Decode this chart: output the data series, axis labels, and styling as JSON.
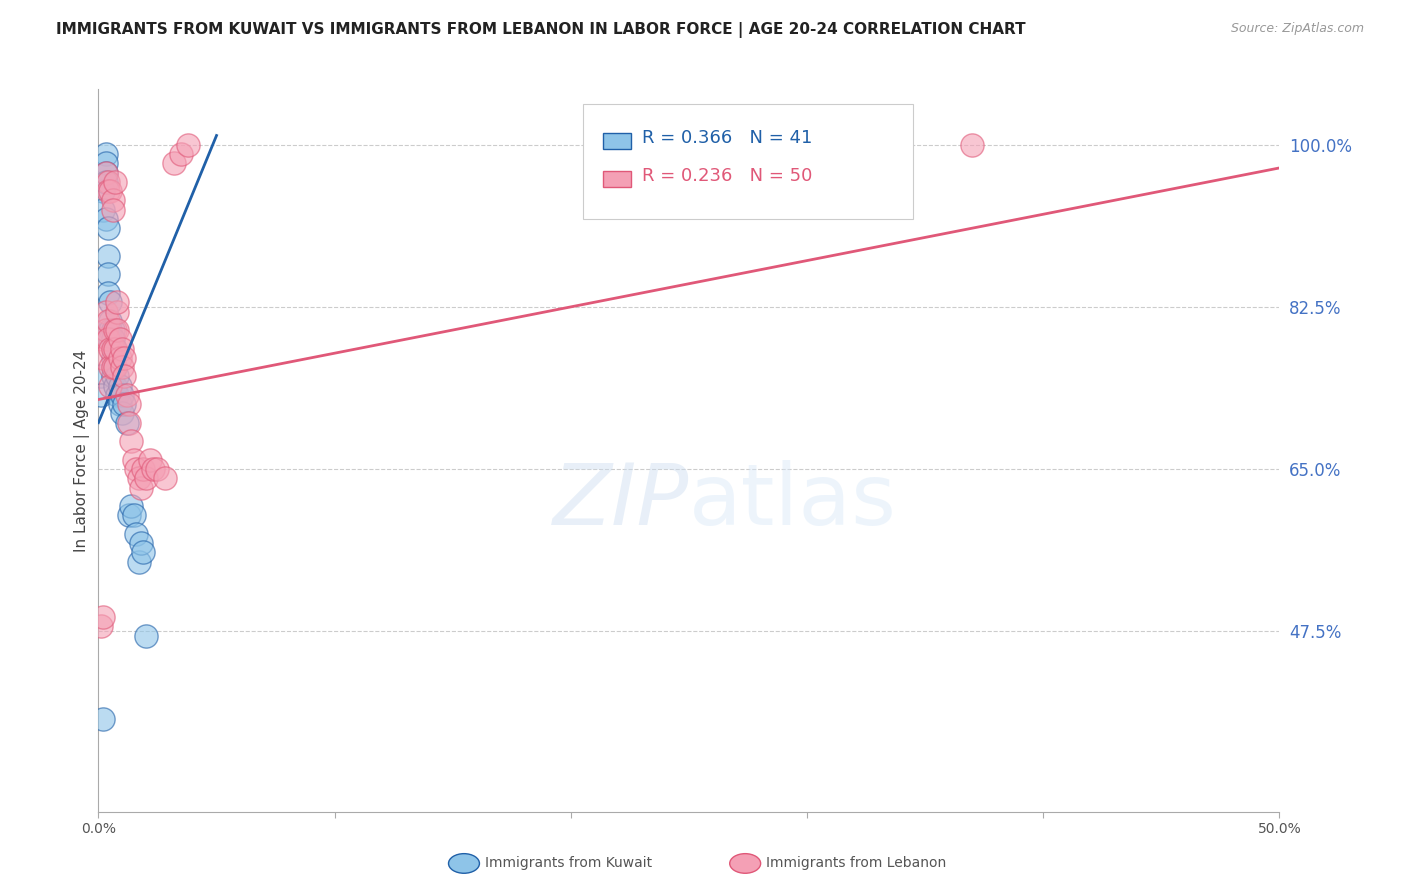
{
  "title": "IMMIGRANTS FROM KUWAIT VS IMMIGRANTS FROM LEBANON IN LABOR FORCE | AGE 20-24 CORRELATION CHART",
  "source": "Source: ZipAtlas.com",
  "ylabel": "In Labor Force | Age 20-24",
  "ytick_labels": [
    "100.0%",
    "82.5%",
    "65.0%",
    "47.5%"
  ],
  "ytick_values": [
    1.0,
    0.825,
    0.65,
    0.475
  ],
  "xlim": [
    0.0,
    0.5
  ],
  "ylim": [
    0.28,
    1.06
  ],
  "kuwait_R": 0.366,
  "kuwait_N": 41,
  "lebanon_R": 0.236,
  "lebanon_N": 50,
  "kuwait_color": "#8ec4e8",
  "lebanon_color": "#f4a0b5",
  "kuwait_line_color": "#2060a8",
  "lebanon_line_color": "#e05878",
  "kuwait_x": [
    0.001,
    0.001,
    0.002,
    0.002,
    0.002,
    0.003,
    0.003,
    0.003,
    0.003,
    0.003,
    0.004,
    0.004,
    0.004,
    0.004,
    0.005,
    0.005,
    0.005,
    0.005,
    0.006,
    0.006,
    0.006,
    0.006,
    0.007,
    0.007,
    0.007,
    0.008,
    0.008,
    0.009,
    0.009,
    0.01,
    0.01,
    0.011,
    0.012,
    0.013,
    0.014,
    0.015,
    0.016,
    0.017,
    0.018,
    0.019,
    0.02
  ],
  "kuwait_y": [
    0.75,
    0.73,
    0.95,
    0.93,
    0.38,
    0.99,
    0.98,
    0.97,
    0.96,
    0.92,
    0.91,
    0.88,
    0.86,
    0.84,
    0.83,
    0.81,
    0.8,
    0.79,
    0.8,
    0.79,
    0.77,
    0.75,
    0.78,
    0.76,
    0.74,
    0.75,
    0.73,
    0.74,
    0.72,
    0.73,
    0.71,
    0.72,
    0.7,
    0.6,
    0.61,
    0.6,
    0.58,
    0.55,
    0.57,
    0.56,
    0.47
  ],
  "lebanon_x": [
    0.001,
    0.002,
    0.002,
    0.003,
    0.003,
    0.004,
    0.004,
    0.005,
    0.005,
    0.005,
    0.006,
    0.006,
    0.007,
    0.007,
    0.007,
    0.008,
    0.008,
    0.009,
    0.009,
    0.01,
    0.01,
    0.011,
    0.011,
    0.012,
    0.013,
    0.013,
    0.014,
    0.015,
    0.016,
    0.017,
    0.018,
    0.019,
    0.02,
    0.022,
    0.023,
    0.025,
    0.028,
    0.032,
    0.035,
    0.038,
    0.002,
    0.003,
    0.004,
    0.004,
    0.005,
    0.006,
    0.006,
    0.007,
    0.008,
    0.37
  ],
  "lebanon_y": [
    0.48,
    0.79,
    0.77,
    0.82,
    0.8,
    0.81,
    0.79,
    0.78,
    0.76,
    0.74,
    0.78,
    0.76,
    0.8,
    0.78,
    0.76,
    0.82,
    0.8,
    0.79,
    0.77,
    0.78,
    0.76,
    0.77,
    0.75,
    0.73,
    0.72,
    0.7,
    0.68,
    0.66,
    0.65,
    0.64,
    0.63,
    0.65,
    0.64,
    0.66,
    0.65,
    0.65,
    0.64,
    0.98,
    0.99,
    1.0,
    0.49,
    0.97,
    0.96,
    0.95,
    0.95,
    0.94,
    0.93,
    0.96,
    0.83,
    1.0
  ],
  "kuwait_line_x0": 0.0,
  "kuwait_line_x1": 0.05,
  "kuwait_line_y0": 0.7,
  "kuwait_line_y1": 1.01,
  "lebanon_line_x0": 0.0,
  "lebanon_line_x1": 0.5,
  "lebanon_line_y0": 0.725,
  "lebanon_line_y1": 0.975
}
